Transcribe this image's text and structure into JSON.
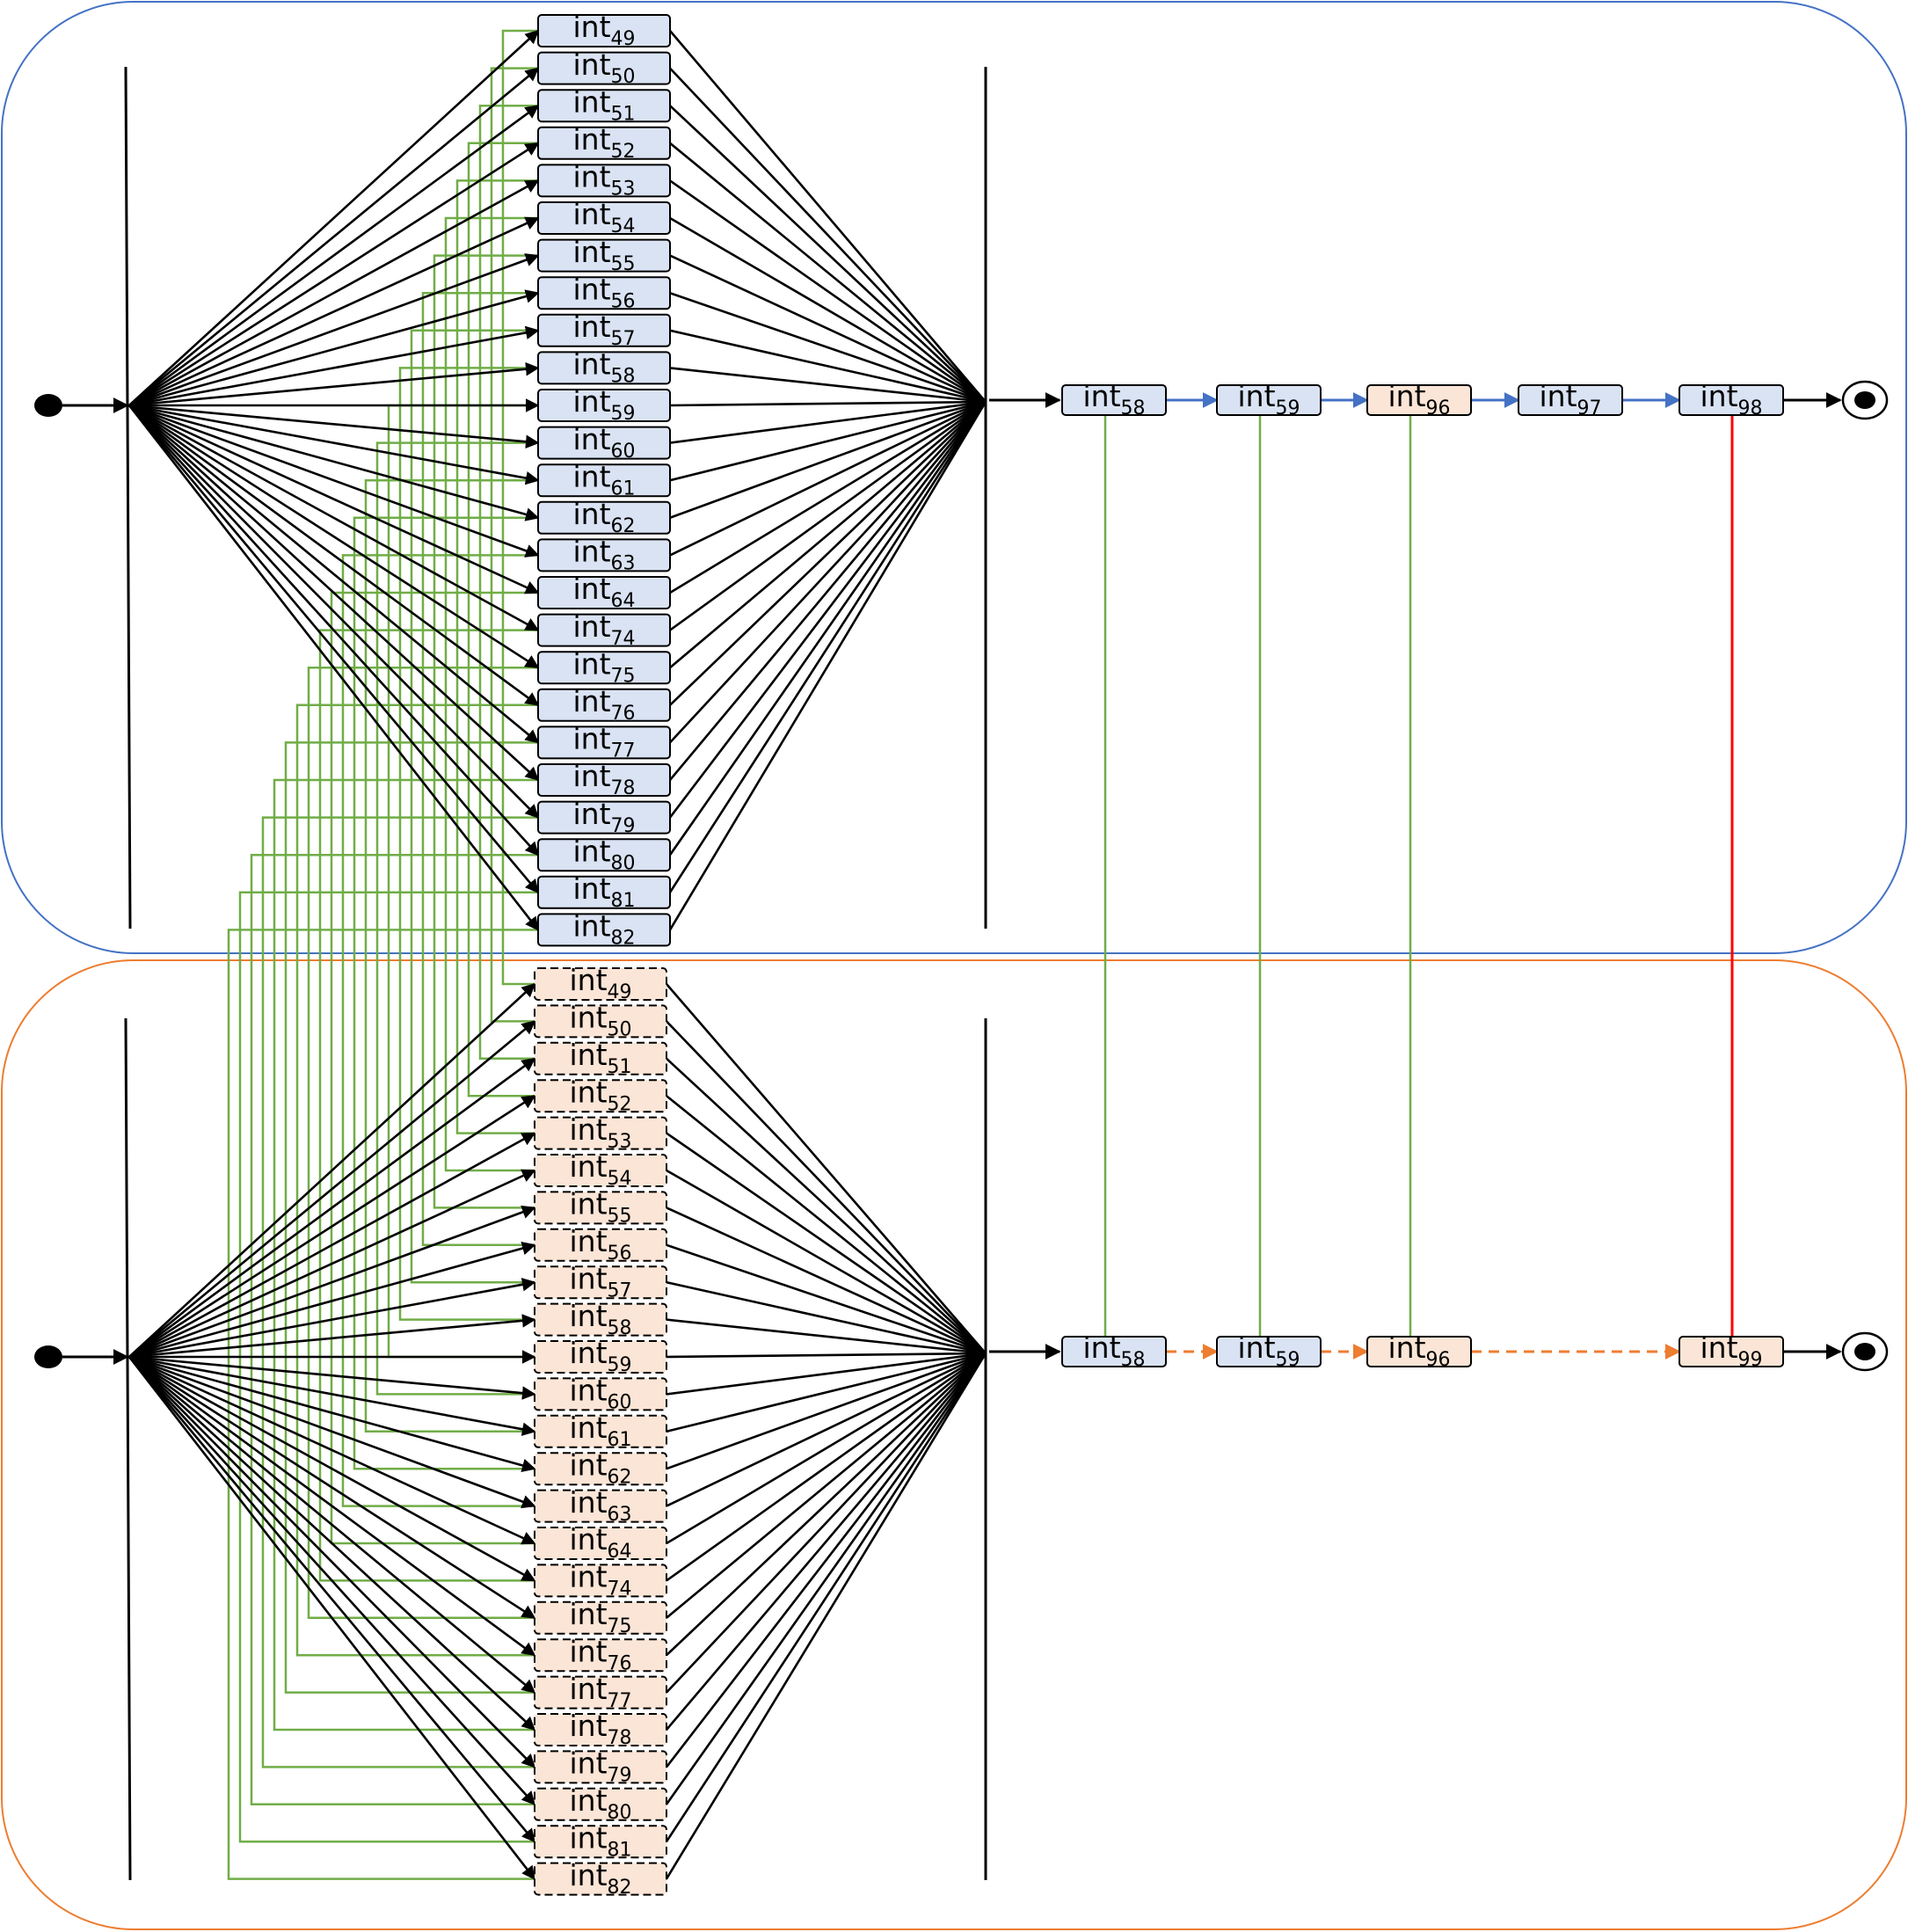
{
  "diagram": {
    "colors": {
      "top_frame": "#4472C4",
      "bottom_frame": "#ED7D31",
      "blue_fill": "#DAE3F3",
      "orange_fill": "#FBE5D6",
      "green_link": "#70AD47",
      "blue_flow": "#4472C4",
      "orange_flow": "#ED7D31",
      "red_link": "#FF0000",
      "black": "#000000"
    },
    "top": {
      "name": "top-process",
      "fork_items": [
        {
          "prefix": "int",
          "sub": "49"
        },
        {
          "prefix": "int",
          "sub": "50"
        },
        {
          "prefix": "int",
          "sub": "51"
        },
        {
          "prefix": "int",
          "sub": "52"
        },
        {
          "prefix": "int",
          "sub": "53"
        },
        {
          "prefix": "int",
          "sub": "54"
        },
        {
          "prefix": "int",
          "sub": "55"
        },
        {
          "prefix": "int",
          "sub": "56"
        },
        {
          "prefix": "int",
          "sub": "57"
        },
        {
          "prefix": "int",
          "sub": "58"
        },
        {
          "prefix": "int",
          "sub": "59"
        },
        {
          "prefix": "int",
          "sub": "60"
        },
        {
          "prefix": "int",
          "sub": "61"
        },
        {
          "prefix": "int",
          "sub": "62"
        },
        {
          "prefix": "int",
          "sub": "63"
        },
        {
          "prefix": "int",
          "sub": "64"
        },
        {
          "prefix": "int",
          "sub": "74"
        },
        {
          "prefix": "int",
          "sub": "75"
        },
        {
          "prefix": "int",
          "sub": "76"
        },
        {
          "prefix": "int",
          "sub": "77"
        },
        {
          "prefix": "int",
          "sub": "78"
        },
        {
          "prefix": "int",
          "sub": "79"
        },
        {
          "prefix": "int",
          "sub": "80"
        },
        {
          "prefix": "int",
          "sub": "81"
        },
        {
          "prefix": "int",
          "sub": "82"
        }
      ],
      "sequence": [
        {
          "prefix": "int",
          "sub": "58",
          "fill": "blue"
        },
        {
          "prefix": "int",
          "sub": "59",
          "fill": "blue"
        },
        {
          "prefix": "int",
          "sub": "96",
          "fill": "orange"
        },
        {
          "prefix": "int",
          "sub": "97",
          "fill": "blue"
        },
        {
          "prefix": "int",
          "sub": "98",
          "fill": "blue"
        }
      ]
    },
    "bottom": {
      "name": "bottom-process",
      "fork_items": [
        {
          "prefix": "int",
          "sub": "49"
        },
        {
          "prefix": "int",
          "sub": "50"
        },
        {
          "prefix": "int",
          "sub": "51"
        },
        {
          "prefix": "int",
          "sub": "52"
        },
        {
          "prefix": "int",
          "sub": "53"
        },
        {
          "prefix": "int",
          "sub": "54"
        },
        {
          "prefix": "int",
          "sub": "55"
        },
        {
          "prefix": "int",
          "sub": "56"
        },
        {
          "prefix": "int",
          "sub": "57"
        },
        {
          "prefix": "int",
          "sub": "58"
        },
        {
          "prefix": "int",
          "sub": "59"
        },
        {
          "prefix": "int",
          "sub": "60"
        },
        {
          "prefix": "int",
          "sub": "61"
        },
        {
          "prefix": "int",
          "sub": "62"
        },
        {
          "prefix": "int",
          "sub": "63"
        },
        {
          "prefix": "int",
          "sub": "64"
        },
        {
          "prefix": "int",
          "sub": "74"
        },
        {
          "prefix": "int",
          "sub": "75"
        },
        {
          "prefix": "int",
          "sub": "76"
        },
        {
          "prefix": "int",
          "sub": "77"
        },
        {
          "prefix": "int",
          "sub": "78"
        },
        {
          "prefix": "int",
          "sub": "79"
        },
        {
          "prefix": "int",
          "sub": "80"
        },
        {
          "prefix": "int",
          "sub": "81"
        },
        {
          "prefix": "int",
          "sub": "82"
        }
      ],
      "sequence": [
        {
          "prefix": "int",
          "sub": "58",
          "fill": "blue"
        },
        {
          "prefix": "int",
          "sub": "59",
          "fill": "blue"
        },
        {
          "prefix": "int",
          "sub": "96",
          "fill": "orange"
        },
        {
          "prefix": "int",
          "sub": "99",
          "fill": "orange"
        }
      ]
    }
  }
}
